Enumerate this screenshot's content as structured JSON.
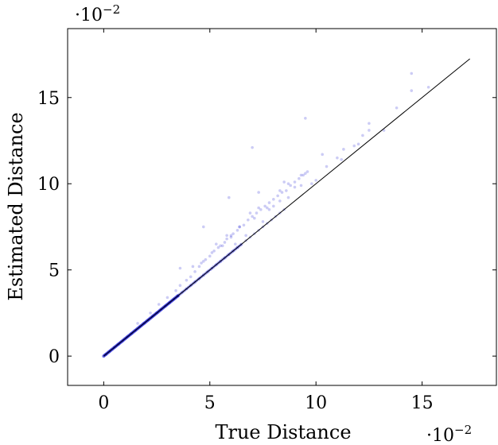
{
  "chart_data": {
    "type": "scatter",
    "xlabel": "True Distance",
    "ylabel": "Estimated Distance",
    "x_multiplier": "·10",
    "x_multiplier_exp": "−2",
    "y_multiplier": "·10",
    "y_multiplier_exp": "−2",
    "xlim": [
      -1.7,
      18.5
    ],
    "ylim": [
      -1.7,
      19.0
    ],
    "x_ticks": [
      0,
      5,
      10,
      15
    ],
    "y_ticks": [
      0,
      5,
      10,
      15
    ],
    "x_tick_labels": [
      "0",
      "5",
      "10",
      "15"
    ],
    "y_tick_labels": [
      "0",
      "5",
      "10",
      "15"
    ],
    "grid": false,
    "reference_line": {
      "x": [
        0,
        17.25
      ],
      "y": [
        0,
        17.25
      ],
      "color": "#000000"
    },
    "series": [
      {
        "color": "#0000cc",
        "opacity": 0.2,
        "x": [
          0.1,
          0.3,
          0.5,
          0.7,
          0.9,
          1.1,
          1.3,
          1.5,
          1.7,
          1.9,
          2.1,
          2.3,
          2.5,
          2.7,
          2.9,
          3.1,
          3.3,
          3.5,
          3.7,
          3.9,
          4.1,
          4.3,
          4.5,
          4.7,
          4.9,
          5.1,
          5.3,
          5.5,
          5.7,
          5.9,
          6.1,
          6.3,
          6.5,
          6.7,
          6.9,
          7.1,
          7.3,
          7.5,
          7.7,
          7.9,
          8.1,
          8.3,
          8.5,
          1.6,
          2.2,
          2.6,
          3.0,
          3.4,
          3.6,
          3.9,
          4.1,
          4.3,
          4.5,
          4.6,
          4.8,
          5.0,
          5.2,
          5.4,
          5.5,
          5.7,
          5.8,
          6.0,
          6.1,
          6.3,
          6.4,
          6.6,
          6.8,
          7.0,
          7.2,
          7.4,
          7.6,
          7.8,
          8.0,
          8.2,
          8.4,
          8.6,
          8.8,
          9.0,
          9.2,
          9.4,
          9.6,
          3.6,
          4.2,
          4.7,
          5.1,
          5.3,
          5.6,
          5.8,
          6.0,
          6.2,
          6.4,
          6.7,
          6.9,
          7.1,
          7.3,
          7.5,
          7.8,
          8.0,
          8.3,
          8.5,
          8.7,
          9.0,
          9.3,
          9.5,
          9.8,
          10.0,
          10.5,
          11.0,
          11.3,
          11.8,
          12.2,
          12.5,
          4.7,
          5.9,
          7.0,
          7.3,
          7.7,
          8.3,
          8.7,
          9.3,
          9.5,
          10.3,
          11.2,
          12.0,
          12.5,
          13.2,
          13.8,
          14.5,
          14.5,
          15.3
        ],
        "y": [
          0.1,
          0.3,
          0.5,
          0.7,
          0.9,
          1.1,
          1.3,
          1.5,
          1.7,
          1.9,
          2.1,
          2.3,
          2.5,
          2.7,
          2.9,
          3.1,
          3.3,
          3.5,
          3.7,
          3.9,
          4.1,
          4.3,
          4.5,
          4.7,
          4.9,
          5.1,
          5.3,
          5.5,
          5.7,
          5.9,
          6.1,
          6.3,
          6.5,
          6.7,
          6.9,
          7.1,
          7.3,
          7.5,
          7.7,
          7.9,
          8.1,
          8.3,
          8.5,
          1.9,
          2.5,
          3.0,
          3.4,
          3.8,
          4.1,
          4.4,
          4.6,
          4.9,
          5.2,
          5.4,
          5.6,
          5.8,
          6.1,
          6.3,
          6.4,
          6.6,
          6.8,
          7.0,
          7.1,
          7.3,
          7.5,
          7.6,
          7.9,
          8.1,
          8.3,
          8.5,
          8.7,
          8.9,
          9.1,
          9.3,
          9.5,
          9.6,
          9.9,
          10.1,
          10.3,
          10.5,
          10.7,
          5.1,
          5.2,
          5.5,
          6.0,
          6.5,
          6.4,
          7.0,
          6.9,
          6.5,
          7.5,
          7.0,
          8.3,
          8.0,
          8.6,
          7.8,
          8.5,
          8.7,
          9.0,
          10.1,
          9.2,
          9.8,
          9.9,
          10.6,
          10.0,
          10.2,
          11.0,
          11.5,
          12.0,
          12.2,
          12.8,
          13.1,
          7.5,
          9.2,
          12.1,
          9.5,
          8.6,
          9.6,
          10.0,
          10.5,
          13.8,
          11.7,
          11.4,
          12.3,
          13.5,
          13.1,
          14.4,
          16.4,
          15.4,
          15.6
        ]
      }
    ]
  }
}
